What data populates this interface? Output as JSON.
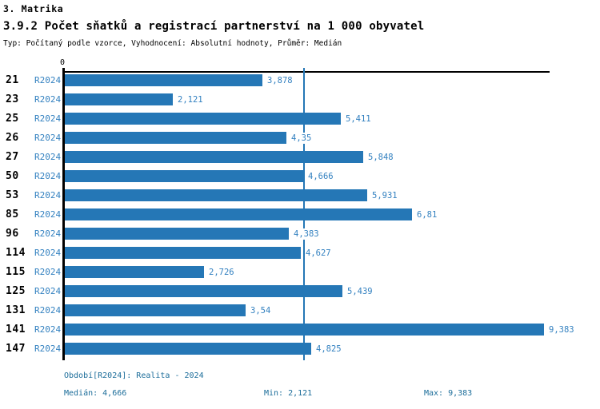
{
  "header": {
    "section_title": "3. Matrika",
    "title": "3.9.2 Počet sňatků a registrací partnerství na 1 000 obyvatel",
    "subtitle": "Typ: Počítaný podle vzorce, Vyhodnocení: Absolutní hodnoty, Průměr: Medián"
  },
  "chart_data": {
    "type": "bar",
    "orientation": "horizontal",
    "title": "3.9.2 Počet sňatků a registrací partnerství na 1 000 obyvatel",
    "categories": [
      "21",
      "23",
      "25",
      "26",
      "27",
      "50",
      "53",
      "85",
      "96",
      "114",
      "115",
      "125",
      "131",
      "141",
      "147"
    ],
    "series": [
      {
        "name": "R2024",
        "values": [
          3.878,
          2.121,
          5.411,
          4.35,
          5.848,
          4.666,
          5.931,
          6.81,
          4.383,
          4.627,
          2.726,
          5.439,
          3.54,
          9.383,
          4.825
        ]
      }
    ],
    "value_labels": [
      "3,878",
      "2,121",
      "5,411",
      "4,35",
      "5,848",
      "4,666",
      "5,931",
      "6,81",
      "4,383",
      "4,627",
      "2,726",
      "5,439",
      "3,54",
      "9,383",
      "4,825"
    ],
    "zero_label": "0",
    "xlim": [
      0,
      9.5
    ],
    "median": 4.666,
    "min": 2.121,
    "max": 9.383,
    "grid": false,
    "legend_position": "none",
    "colors": {
      "bar": "#2577b6",
      "median_line": "#2577b6",
      "row_period_text": "#3381c0",
      "value_text": "#3381c0",
      "footer_text": "#1c6d9a",
      "axis": "#000000"
    }
  },
  "footer": {
    "period": "Období[R2024]: Realita - 2024",
    "median": "Medián: 4,666",
    "min": "Min: 2,121",
    "max": "Max: 9,383"
  }
}
